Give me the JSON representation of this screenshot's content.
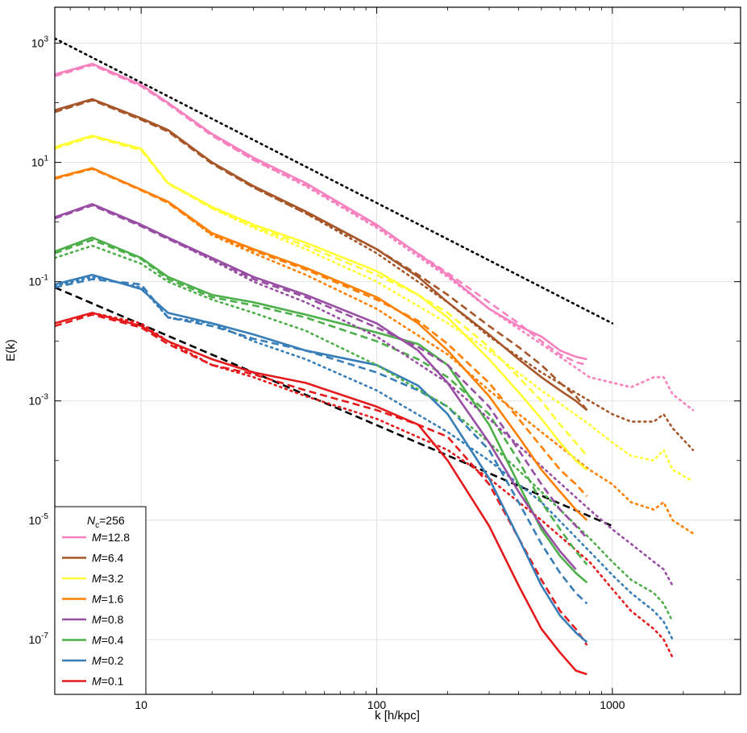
{
  "chart_data": {
    "type": "line",
    "title": "",
    "xlabel": "k [h/kpc]",
    "ylabel": "E(k)",
    "xscale": "log",
    "yscale": "log",
    "xlim": [
      4.3,
      3500
    ],
    "ylim": [
      1.2e-08,
      4000
    ],
    "grid": true,
    "x_ticks": [
      {
        "value": 10,
        "label": "10"
      },
      {
        "value": 100,
        "label": "100"
      },
      {
        "value": 1000,
        "label": "1000"
      }
    ],
    "y_ticks": [
      {
        "value": 1000,
        "base": "10",
        "exp": "3"
      },
      {
        "value": 10,
        "base": "10",
        "exp": "1"
      },
      {
        "value": 0.1,
        "base": "10",
        "exp": "-1"
      },
      {
        "value": 0.001,
        "base": "10",
        "exp": "-3"
      },
      {
        "value": 1e-05,
        "base": "10",
        "exp": "-5"
      },
      {
        "value": 1e-07,
        "base": "10",
        "exp": "-7"
      }
    ],
    "legend": {
      "title_italic": "N",
      "title_sub": "c",
      "title_rest": "=256",
      "placement": "lower-left",
      "entries": [
        {
          "italic": "M",
          "rest": "=12.8",
          "color": "#f781bf"
        },
        {
          "italic": "M",
          "rest": "=6.4",
          "color": "#a65628"
        },
        {
          "italic": "M",
          "rest": "=3.2",
          "color": "#ffff33"
        },
        {
          "italic": "M",
          "rest": "=1.6",
          "color": "#ff7f00"
        },
        {
          "italic": "M",
          "rest": "=0.8",
          "color": "#984ea3"
        },
        {
          "italic": "M",
          "rest": "=0.4",
          "color": "#4daf4a"
        },
        {
          "italic": "M",
          "rest": "=0.2",
          "color": "#377eb8"
        },
        {
          "italic": "M",
          "rest": "=0.1",
          "color": "#e41a1c"
        }
      ]
    },
    "reference_lines": [
      {
        "name": "k^-5/3 reference",
        "style": "dotted",
        "color": "#000000",
        "x": [
          4.3,
          1000
        ],
        "y": [
          1200,
          0.02
        ]
      },
      {
        "name": "k^-2 reference",
        "style": "dashed",
        "color": "#000000",
        "x": [
          4.3,
          1000
        ],
        "y": [
          0.08,
          8e-06
        ]
      }
    ],
    "series": [
      {
        "name": "M=12.8",
        "color": "#f781bf",
        "solid": {
          "x": [
            4.3,
            6.2,
            10,
            13,
            20,
            30,
            50,
            100,
            200,
            300,
            400,
            500,
            600,
            700,
            780
          ],
          "y": [
            300,
            450,
            200,
            100,
            30,
            12,
            4.5,
            0.9,
            0.13,
            0.035,
            0.018,
            0.012,
            0.007,
            0.0055,
            0.005
          ]
        },
        "dashed": {
          "x": [
            4.3,
            6.2,
            10,
            13,
            20,
            30,
            50,
            100,
            200,
            300,
            400,
            500,
            600,
            700,
            780
          ],
          "y": [
            280,
            430,
            190,
            95,
            28,
            11,
            4.2,
            0.85,
            0.14,
            0.045,
            0.02,
            0.01,
            0.006,
            0.0045,
            0.004
          ]
        },
        "dotted": {
          "x": [
            4.3,
            6.2,
            10,
            13,
            20,
            30,
            50,
            100,
            200,
            300,
            500,
            800,
            1200,
            1500,
            1650,
            1800,
            2200
          ],
          "y": [
            290,
            440,
            195,
            98,
            29,
            11,
            4.0,
            0.8,
            0.12,
            0.035,
            0.009,
            0.0025,
            0.0017,
            0.0025,
            0.0025,
            0.0013,
            0.0007
          ]
        }
      },
      {
        "name": "M=6.4",
        "color": "#a65628",
        "solid": {
          "x": [
            4.3,
            6.2,
            10,
            13,
            20,
            30,
            50,
            100,
            150,
            200,
            300,
            400,
            500,
            600,
            700,
            780
          ],
          "y": [
            75,
            115,
            55,
            35,
            10,
            4,
            1.5,
            0.35,
            0.12,
            0.045,
            0.013,
            0.005,
            0.0025,
            0.0015,
            0.001,
            0.0007
          ]
        },
        "dashed": {
          "x": [
            4.3,
            6.2,
            10,
            13,
            20,
            30,
            50,
            100,
            150,
            200,
            300,
            400,
            500,
            600,
            700,
            780
          ],
          "y": [
            70,
            110,
            52,
            33,
            9.5,
            3.8,
            1.4,
            0.35,
            0.13,
            0.06,
            0.018,
            0.008,
            0.004,
            0.002,
            0.0012,
            0.0007
          ]
        },
        "dotted": {
          "x": [
            4.3,
            6.2,
            10,
            13,
            20,
            30,
            50,
            100,
            200,
            300,
            500,
            800,
            1000,
            1200,
            1500,
            1650,
            1800,
            2200
          ],
          "y": [
            72,
            112,
            53,
            34,
            9.8,
            3.8,
            1.4,
            0.3,
            0.045,
            0.012,
            0.003,
            0.001,
            0.0006,
            0.00045,
            0.00045,
            0.0006,
            0.00035,
            0.00015
          ]
        }
      },
      {
        "name": "M=3.2",
        "color": "#ffff33",
        "solid": {
          "x": [
            4.3,
            6.2,
            10,
            13,
            20,
            30,
            50,
            100,
            150,
            200,
            300,
            400,
            500,
            600,
            700,
            780
          ],
          "y": [
            18,
            28,
            17,
            4.5,
            1.8,
            0.9,
            0.45,
            0.15,
            0.06,
            0.025,
            0.005,
            0.0014,
            0.0005,
            0.0002,
            0.0001,
            7e-05
          ]
        },
        "dashed": {
          "x": [
            4.3,
            6.2,
            10,
            13,
            20,
            30,
            50,
            100,
            150,
            200,
            300,
            400,
            500,
            600,
            700,
            780
          ],
          "y": [
            17,
            27,
            16,
            4.4,
            1.7,
            0.85,
            0.4,
            0.13,
            0.06,
            0.03,
            0.008,
            0.0025,
            0.001,
            0.0004,
            0.0002,
            0.00012
          ]
        },
        "dotted": {
          "x": [
            4.3,
            6.2,
            10,
            13,
            20,
            30,
            50,
            100,
            200,
            300,
            500,
            800,
            1000,
            1200,
            1500,
            1650,
            1800,
            2200
          ],
          "y": [
            17.5,
            27.5,
            16.5,
            4.5,
            1.7,
            0.8,
            0.35,
            0.1,
            0.02,
            0.007,
            0.0015,
            0.0004,
            0.0002,
            0.00012,
            0.0001,
            0.00015,
            7e-05,
            4.5e-05
          ]
        }
      },
      {
        "name": "M=1.6",
        "color": "#ff7f00",
        "solid": {
          "x": [
            4.3,
            6.2,
            10,
            13,
            20,
            30,
            50,
            100,
            150,
            200,
            300,
            400,
            500,
            600,
            700,
            780
          ],
          "y": [
            5.5,
            8,
            3.5,
            2.2,
            0.65,
            0.35,
            0.17,
            0.055,
            0.02,
            0.007,
            0.0012,
            0.00025,
            7e-05,
            3e-05,
            1.5e-05,
            1e-05
          ]
        },
        "dashed": {
          "x": [
            4.3,
            6.2,
            10,
            13,
            20,
            30,
            50,
            100,
            150,
            200,
            300,
            400,
            500,
            600,
            700,
            780
          ],
          "y": [
            5.3,
            7.8,
            3.4,
            2.1,
            0.62,
            0.33,
            0.16,
            0.05,
            0.022,
            0.009,
            0.002,
            0.0005,
            0.00017,
            7e-05,
            4e-05,
            2.5e-05
          ]
        },
        "dotted": {
          "x": [
            4.3,
            6.2,
            10,
            13,
            20,
            30,
            50,
            100,
            200,
            300,
            500,
            800,
            1000,
            1200,
            1500,
            1650,
            1800,
            2200
          ],
          "y": [
            5.4,
            7.9,
            3.45,
            2.15,
            0.6,
            0.3,
            0.13,
            0.035,
            0.006,
            0.0015,
            0.0003,
            7e-05,
            4e-05,
            2e-05,
            1.5e-05,
            2e-05,
            1e-05,
            6e-06
          ]
        }
      },
      {
        "name": "M=0.8",
        "color": "#984ea3",
        "solid": {
          "x": [
            4.3,
            6.2,
            10,
            13,
            20,
            30,
            50,
            100,
            150,
            200,
            300,
            400,
            500,
            600,
            700
          ],
          "y": [
            1.2,
            2,
            0.9,
            0.55,
            0.25,
            0.12,
            0.06,
            0.02,
            0.007,
            0.002,
            0.0002,
            3e-05,
            8e-06,
            3e-06,
            1.5e-06
          ]
        },
        "dashed": {
          "x": [
            4.3,
            6.2,
            10,
            13,
            20,
            30,
            50,
            100,
            150,
            200,
            300,
            400,
            500,
            600,
            700,
            780
          ],
          "y": [
            1.15,
            1.9,
            0.85,
            0.52,
            0.24,
            0.11,
            0.055,
            0.017,
            0.008,
            0.004,
            0.0008,
            0.00015,
            4e-05,
            1.5e-05,
            8e-06,
            5e-06
          ]
        },
        "dotted": {
          "x": [
            4.3,
            6.2,
            10,
            13,
            20,
            30,
            50,
            100,
            200,
            300,
            500,
            800,
            1000,
            1200,
            1500,
            1650,
            1800
          ],
          "y": [
            1.18,
            1.95,
            0.88,
            0.53,
            0.23,
            0.1,
            0.045,
            0.012,
            0.002,
            0.0005,
            8e-05,
            1.5e-05,
            7e-06,
            4e-06,
            2e-06,
            1.5e-06,
            8e-07
          ]
        }
      },
      {
        "name": "M=0.4",
        "color": "#4daf4a",
        "solid": {
          "x": [
            4.3,
            6.2,
            10,
            13,
            20,
            30,
            50,
            100,
            150,
            200,
            300,
            400,
            500,
            600,
            700,
            780
          ],
          "y": [
            0.32,
            0.55,
            0.25,
            0.12,
            0.06,
            0.045,
            0.028,
            0.014,
            0.009,
            0.004,
            0.0004,
            4e-05,
            7e-06,
            2.5e-06,
            1.3e-06,
            9e-07
          ]
        },
        "dashed": {
          "x": [
            4.3,
            6.2,
            10,
            13,
            20,
            30,
            50,
            100,
            150,
            200,
            300,
            400,
            500,
            600,
            700,
            780
          ],
          "y": [
            0.3,
            0.5,
            0.24,
            0.11,
            0.055,
            0.04,
            0.025,
            0.01,
            0.005,
            0.0025,
            0.0006,
            0.0001,
            2e-05,
            7e-06,
            3e-06,
            1.8e-06
          ]
        },
        "dotted": {
          "x": [
            4.3,
            6.2,
            10,
            13,
            20,
            30,
            50,
            100,
            200,
            300,
            500,
            800,
            1000,
            1200,
            1500,
            1650,
            1800
          ],
          "y": [
            0.25,
            0.4,
            0.2,
            0.1,
            0.05,
            0.03,
            0.015,
            0.004,
            0.0008,
            0.0002,
            3e-05,
            5e-06,
            2e-06,
            1e-06,
            6e-07,
            4e-07,
            2e-07
          ]
        }
      },
      {
        "name": "M=0.2",
        "color": "#377eb8",
        "solid": {
          "x": [
            4.3,
            6.2,
            10,
            13,
            20,
            30,
            50,
            100,
            150,
            200,
            300,
            400,
            500,
            600,
            700,
            780
          ],
          "y": [
            0.09,
            0.13,
            0.075,
            0.03,
            0.02,
            0.013,
            0.007,
            0.004,
            0.0018,
            0.0006,
            5e-05,
            5e-06,
            8e-07,
            2.5e-07,
            1.3e-07,
            9e-08
          ]
        },
        "dashed": {
          "x": [
            4.3,
            6.2,
            10,
            13,
            20,
            30,
            50,
            100,
            150,
            200,
            300,
            400,
            500,
            600,
            700,
            780
          ],
          "y": [
            0.08,
            0.11,
            0.09,
            0.025,
            0.018,
            0.011,
            0.007,
            0.003,
            0.0015,
            0.0008,
            0.00015,
            2e-05,
            4e-06,
            1.3e-06,
            6e-07,
            4e-07
          ]
        },
        "dotted": {
          "x": [
            4.3,
            6.2,
            10,
            13,
            20,
            30,
            50,
            100,
            200,
            300,
            500,
            800,
            1000,
            1200,
            1500,
            1650,
            1800
          ],
          "y": [
            0.085,
            0.12,
            0.08,
            0.025,
            0.02,
            0.01,
            0.005,
            0.0015,
            0.0003,
            0.0001,
            2e-05,
            3e-06,
            1.2e-06,
            6e-07,
            3e-07,
            2e-07,
            1e-07
          ]
        }
      },
      {
        "name": "M=0.1",
        "color": "#e41a1c",
        "solid": {
          "x": [
            4.3,
            6.2,
            10,
            13,
            20,
            30,
            50,
            100,
            150,
            200,
            300,
            400,
            500,
            600,
            700,
            780
          ],
          "y": [
            0.02,
            0.03,
            0.018,
            0.01,
            0.005,
            0.003,
            0.002,
            0.0008,
            0.0004,
            0.0001,
            8e-06,
            8e-07,
            1.5e-07,
            6e-08,
            3e-08,
            2.6e-08
          ]
        },
        "dashed": {
          "x": [
            4.3,
            6.2,
            10,
            13,
            20,
            30,
            50,
            100,
            150,
            200,
            300,
            400,
            500,
            600,
            700,
            780
          ],
          "y": [
            0.018,
            0.028,
            0.017,
            0.009,
            0.004,
            0.0028,
            0.0015,
            0.0007,
            0.0004,
            0.00025,
            4e-05,
            5e-06,
            1e-06,
            3e-07,
            1.5e-07,
            8e-08
          ]
        },
        "dotted": {
          "x": [
            4.3,
            6.2,
            10,
            13,
            20,
            30,
            50,
            100,
            200,
            300,
            500,
            800,
            1000,
            1200,
            1500,
            1650,
            1800
          ],
          "y": [
            0.02,
            0.03,
            0.02,
            0.01,
            0.004,
            0.0025,
            0.0012,
            0.0005,
            0.00015,
            5e-05,
            1e-05,
            2e-06,
            7e-07,
            3e-07,
            1.5e-07,
            1e-07,
            5e-08
          ]
        }
      }
    ]
  }
}
